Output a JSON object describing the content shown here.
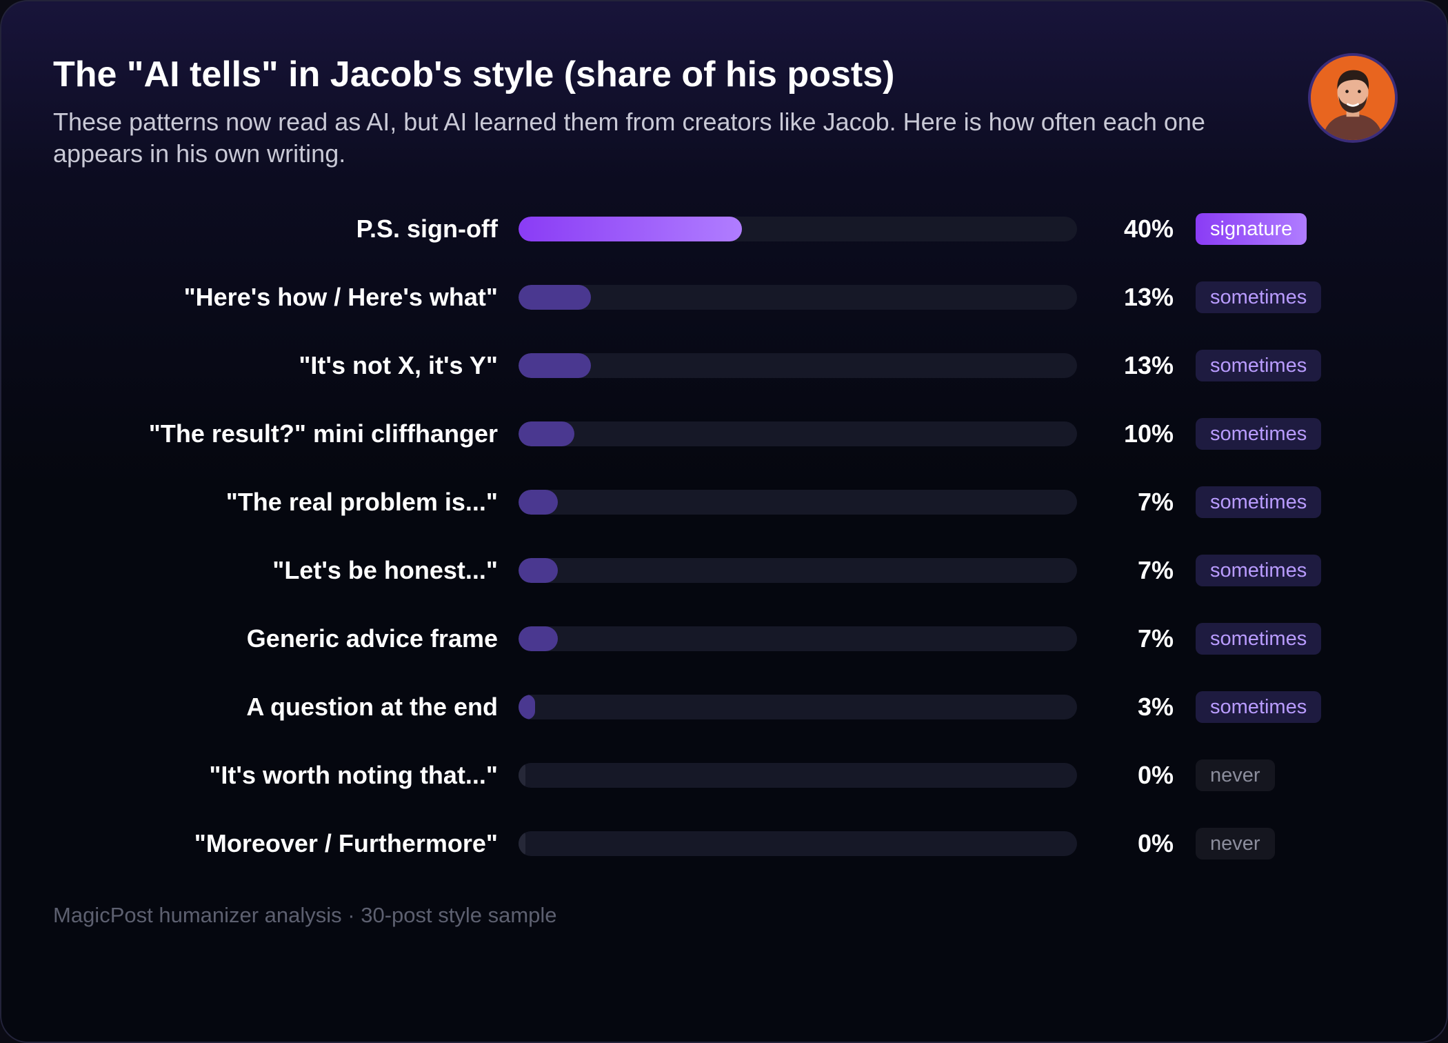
{
  "header": {
    "title": "The \"AI tells\" in Jacob's style (share of his posts)",
    "subtitle": "These patterns now read as AI, but AI learned them from creators like Jacob. Here is how often each one appears in his own writing."
  },
  "footnote": "MagicPost humanizer analysis · 30-post style sample",
  "colors": {
    "accent": "#8a3cf5",
    "accent_light": "#b07dff",
    "bar_sometimes": "#4a3890",
    "track": "#161827",
    "avatar_bg": "#e8651f"
  },
  "chart_data": {
    "type": "bar",
    "orientation": "horizontal",
    "xlim": [
      0,
      100
    ],
    "unit": "%",
    "grid": false,
    "categories": [
      "P.S. sign-off",
      "\"Here's how / Here's what\"",
      "\"It's not X, it's Y\"",
      "\"The result?\" mini cliffhanger",
      "\"The real problem is...\"",
      "\"Let's be honest...\"",
      "Generic advice frame",
      "A question at the end",
      "\"It's worth noting that...\"",
      "\"Moreover / Furthermore\""
    ],
    "values": [
      40,
      13,
      13,
      10,
      7,
      7,
      7,
      3,
      0,
      0
    ],
    "value_labels": [
      "40%",
      "13%",
      "13%",
      "10%",
      "7%",
      "7%",
      "7%",
      "3%",
      "0%",
      "0%"
    ],
    "tags": [
      "signature",
      "sometimes",
      "sometimes",
      "sometimes",
      "sometimes",
      "sometimes",
      "sometimes",
      "sometimes",
      "never",
      "never"
    ]
  }
}
